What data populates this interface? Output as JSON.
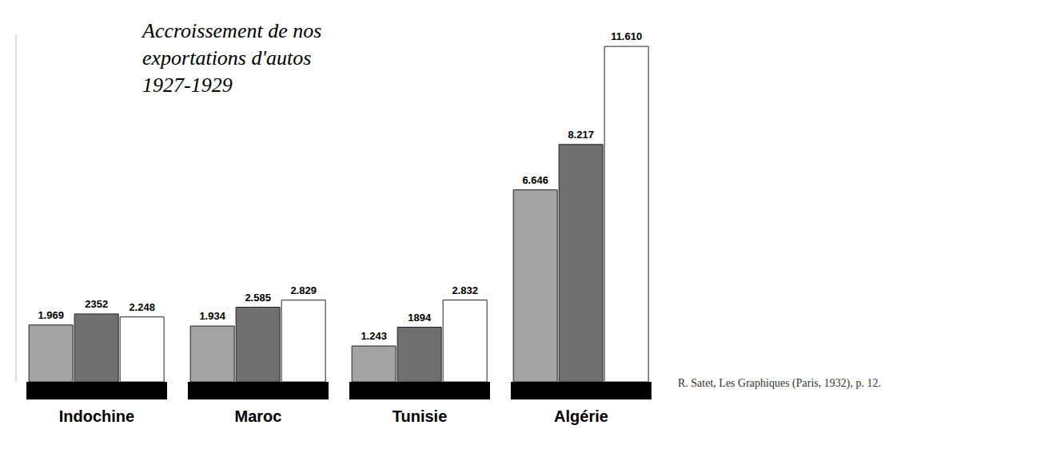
{
  "chart_data": {
    "type": "bar",
    "title": "Accroissement de nos exportations d'autos 1927-1929",
    "categories": [
      "Indochine",
      "Maroc",
      "Tunisie",
      "Algérie"
    ],
    "series": [
      {
        "color": "#a3a3a3",
        "values": [
          1969,
          1934,
          1243,
          6646
        ],
        "value_labels": [
          "1.969",
          "1.934",
          "1.243",
          "6.646"
        ]
      },
      {
        "color": "#6f6f6f",
        "values": [
          2352,
          2585,
          1894,
          8217
        ],
        "value_labels": [
          "2352",
          "2.585",
          "1894",
          "8.217"
        ]
      },
      {
        "color": "#ffffff",
        "values": [
          2248,
          2829,
          2832,
          11610
        ],
        "value_labels": [
          "2.248",
          "2.829",
          "2.832",
          "11.610"
        ]
      }
    ],
    "ylim": [
      0,
      12000
    ],
    "data_labels": true,
    "tick_labels": "x",
    "grid": false,
    "annotations": [
      "R. Satet, Les Graphiques (Paris, 1932), p. 12."
    ]
  }
}
